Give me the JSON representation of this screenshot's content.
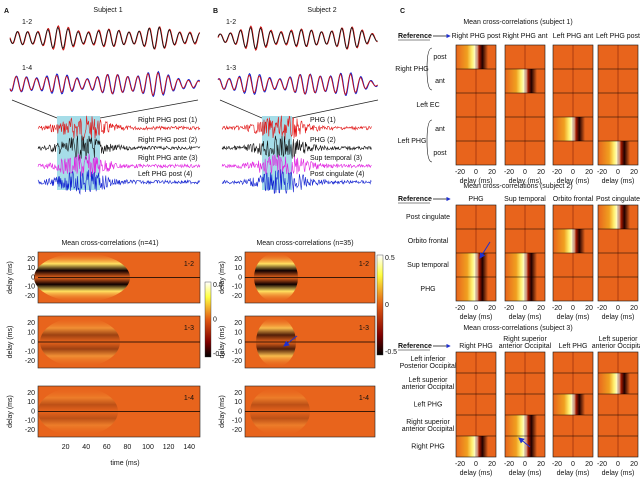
{
  "panel_a": {
    "label": "A",
    "subject": "Subject  1",
    "wave_labels": [
      "1-2",
      "1-4"
    ],
    "channels": [
      "Right PHG post (1)",
      "Right PHG post (2)",
      "Right PHG ante (3)",
      "Left PHG post (4)"
    ],
    "title": "Mean cross-correlations (n=41)",
    "maps": [
      "1-2",
      "1-3",
      "1-4"
    ],
    "yticks": [
      20,
      10,
      0,
      -10,
      -20
    ],
    "y_label": "delay (ms)",
    "xticks": [
      20,
      40,
      60,
      80,
      100,
      120,
      140
    ],
    "x_label": "time (ms)",
    "colorbar": [
      0.5,
      0,
      -0.5
    ]
  },
  "panel_b": {
    "label": "B",
    "subject": "Subject 2",
    "wave_labels": [
      "1-2",
      "1-3"
    ],
    "channels": [
      "PHG (1)",
      "PHG  (2)",
      "Sup temporal (3)",
      "Post cingulate (4)"
    ],
    "title": "Mean cross-correlations (n=35)",
    "maps": [
      "1-2",
      "1-3",
      "1-4"
    ],
    "yticks": [
      20,
      10,
      0,
      -10,
      -20
    ],
    "y_label": "delay (ms)",
    "colorbar": [
      0.5,
      0,
      -0.5
    ]
  },
  "panel_c": {
    "label": "C",
    "subplots": [
      {
        "title": "Mean cross-correlations (subject 1)",
        "reference": "Reference",
        "columns": [
          [
            "Right PHG post"
          ],
          [
            "Right PHG ant"
          ],
          [
            "Left PHG ant"
          ],
          [
            "Left PHG post"
          ]
        ],
        "groups": [
          "Right PHG",
          "Left PHG"
        ],
        "rows": [
          [
            "post"
          ],
          [
            "ant"
          ],
          [
            "Left EC"
          ],
          [
            "ant"
          ],
          [
            "post"
          ]
        ],
        "xticks": [
          -20,
          0,
          20
        ],
        "x_label": "delay (ms)"
      },
      {
        "title": "Mean cross-correlations (subject 2)",
        "reference": "Reference",
        "columns": [
          [
            "PHG"
          ],
          [
            "Sup temporal"
          ],
          [
            "Orbito frontal"
          ],
          [
            "Post cingulate"
          ]
        ],
        "rows": [
          [
            "Post cingulate"
          ],
          [
            "Orbito frontal"
          ],
          [
            "Sup temporal"
          ],
          [
            "PHG"
          ]
        ],
        "xticks": [
          -20,
          0,
          20
        ],
        "x_label": "delay (ms)"
      },
      {
        "title": "Mean cross-correlations (subject 3)",
        "reference": "Reference",
        "columns": [
          [
            "Right PHG"
          ],
          [
            "Right superior",
            "anterior Occipital"
          ],
          [
            "Left PHG"
          ],
          [
            "Left superior",
            "anterior Occipital"
          ]
        ],
        "rows": [
          [
            "Left inferior",
            "Posterior Occipital"
          ],
          [
            "Left superior",
            "anterior Occipital"
          ],
          [
            "Left PHG"
          ],
          [
            "Right superior",
            "anterior Occipital"
          ],
          [
            "Right PHG"
          ]
        ],
        "xticks": [
          -20,
          0,
          20
        ],
        "x_label": "delay (ms)"
      }
    ]
  }
}
